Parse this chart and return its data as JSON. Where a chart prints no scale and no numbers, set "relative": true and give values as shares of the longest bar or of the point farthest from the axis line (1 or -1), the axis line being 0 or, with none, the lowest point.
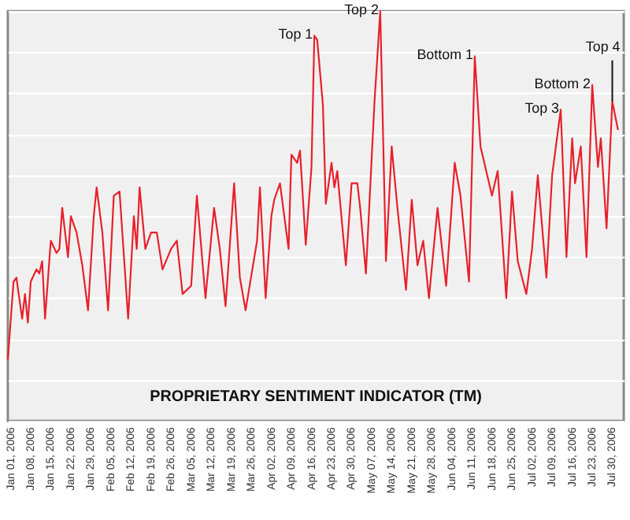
{
  "chart_data": {
    "type": "line",
    "title": "PROPRIETARY SENTIMENT INDICATOR (TM)",
    "relative": true,
    "grid": "y",
    "marker": "none",
    "line_style": "solid",
    "xlim": [
      "2005-12-31",
      "2006-08-03"
    ],
    "xticks": [
      {
        "value": "2006-01-01",
        "label": "Jan 01, 2006"
      },
      {
        "value": "2006-01-08",
        "label": "Jan 08, 2006"
      },
      {
        "value": "2006-01-15",
        "label": "Jan 15, 2006"
      },
      {
        "value": "2006-01-22",
        "label": "Jan 22, 2006"
      },
      {
        "value": "2006-01-29",
        "label": "Jan 29, 2006"
      },
      {
        "value": "2006-02-05",
        "label": "Feb 05, 2006"
      },
      {
        "value": "2006-02-12",
        "label": "Feb 12, 2006"
      },
      {
        "value": "2006-02-19",
        "label": "Feb 19, 2006"
      },
      {
        "value": "2006-02-26",
        "label": "Feb 26, 2006"
      },
      {
        "value": "2006-03-05",
        "label": "Mar 05, 2006"
      },
      {
        "value": "2006-03-12",
        "label": "Mar 12, 2006"
      },
      {
        "value": "2006-03-19",
        "label": "Mar 19, 2006"
      },
      {
        "value": "2006-03-26",
        "label": "Mar 26, 2006"
      },
      {
        "value": "2006-04-02",
        "label": "Apr 02, 2006"
      },
      {
        "value": "2006-04-09",
        "label": "Apr 09, 2006"
      },
      {
        "value": "2006-04-16",
        "label": "Apr 16, 2006"
      },
      {
        "value": "2006-04-23",
        "label": "Apr 23, 2006"
      },
      {
        "value": "2006-04-30",
        "label": "Apr 30, 2006"
      },
      {
        "value": "2006-05-07",
        "label": "May 07, 2006"
      },
      {
        "value": "2006-05-14",
        "label": "May 14, 2006"
      },
      {
        "value": "2006-05-21",
        "label": "May 21, 2006"
      },
      {
        "value": "2006-05-28",
        "label": "May 28, 2006"
      },
      {
        "value": "2006-06-04",
        "label": "Jun 04, 2006"
      },
      {
        "value": "2006-06-11",
        "label": "Jun 11, 2006"
      },
      {
        "value": "2006-06-18",
        "label": "Jun 18, 2006"
      },
      {
        "value": "2006-06-25",
        "label": "Jun 25, 2006"
      },
      {
        "value": "2006-07-02",
        "label": "Jul 02, 2006"
      },
      {
        "value": "2006-07-09",
        "label": "Jul 09, 2006"
      },
      {
        "value": "2006-07-16",
        "label": "Jul 16, 2006"
      },
      {
        "value": "2006-07-23",
        "label": "Jul 23, 2006"
      },
      {
        "value": "2006-07-30",
        "label": "Jul 30, 2006"
      }
    ],
    "x": [
      "2005-12-31",
      "2006-01-02",
      "2006-01-03",
      "2006-01-05",
      "2006-01-06",
      "2006-01-07",
      "2006-01-08",
      "2006-01-10",
      "2006-01-11",
      "2006-01-12",
      "2006-01-13",
      "2006-01-15",
      "2006-01-17",
      "2006-01-18",
      "2006-01-19",
      "2006-01-21",
      "2006-01-22",
      "2006-01-24",
      "2006-01-26",
      "2006-01-28",
      "2006-01-30",
      "2006-01-31",
      "2006-02-02",
      "2006-02-04",
      "2006-02-06",
      "2006-02-08",
      "2006-02-11",
      "2006-02-13",
      "2006-02-14",
      "2006-02-15",
      "2006-02-17",
      "2006-02-19",
      "2006-02-21",
      "2006-02-23",
      "2006-02-26",
      "2006-02-28",
      "2006-03-02",
      "2006-03-05",
      "2006-03-07",
      "2006-03-10",
      "2006-03-13",
      "2006-03-15",
      "2006-03-17",
      "2006-03-20",
      "2006-03-22",
      "2006-03-24",
      "2006-03-28",
      "2006-03-29",
      "2006-03-31",
      "2006-04-02",
      "2006-04-03",
      "2006-04-05",
      "2006-04-08",
      "2006-04-09",
      "2006-04-11",
      "2006-04-12",
      "2006-04-14",
      "2006-04-16",
      "2006-04-17",
      "2006-04-18",
      "2006-04-20",
      "2006-04-21",
      "2006-04-23",
      "2006-04-24",
      "2006-04-25",
      "2006-04-28",
      "2006-04-30",
      "2006-05-02",
      "2006-05-03",
      "2006-05-05",
      "2006-05-08",
      "2006-05-10",
      "2006-05-12",
      "2006-05-14",
      "2006-05-16",
      "2006-05-19",
      "2006-05-21",
      "2006-05-23",
      "2006-05-25",
      "2006-05-27",
      "2006-05-30",
      "2006-06-02",
      "2006-06-05",
      "2006-06-07",
      "2006-06-10",
      "2006-06-12",
      "2006-06-14",
      "2006-06-18",
      "2006-06-20",
      "2006-06-23",
      "2006-06-25",
      "2006-06-27",
      "2006-06-30",
      "2006-07-02",
      "2006-07-04",
      "2006-07-07",
      "2006-07-09",
      "2006-07-12",
      "2006-07-14",
      "2006-07-16",
      "2006-07-17",
      "2006-07-19",
      "2006-07-21",
      "2006-07-23",
      "2006-07-25",
      "2006-07-26",
      "2006-07-28",
      "2006-07-30",
      "2006-08-01"
    ],
    "series": [
      {
        "color": "#e8202a",
        "values": [
          0.15,
          0.34,
          0.35,
          0.25,
          0.31,
          0.24,
          0.34,
          0.37,
          0.36,
          0.39,
          0.25,
          0.44,
          0.41,
          0.42,
          0.52,
          0.4,
          0.5,
          0.46,
          0.38,
          0.27,
          0.5,
          0.57,
          0.46,
          0.27,
          0.55,
          0.56,
          0.25,
          0.5,
          0.42,
          0.57,
          0.42,
          0.46,
          0.46,
          0.37,
          0.42,
          0.44,
          0.31,
          0.33,
          0.55,
          0.3,
          0.52,
          0.42,
          0.28,
          0.58,
          0.35,
          0.27,
          0.44,
          0.57,
          0.3,
          0.5,
          0.54,
          0.58,
          0.42,
          0.65,
          0.63,
          0.66,
          0.43,
          0.62,
          0.94,
          0.93,
          0.77,
          0.53,
          0.63,
          0.57,
          0.61,
          0.38,
          0.58,
          0.58,
          0.52,
          0.36,
          0.78,
          1,
          0.39,
          0.67,
          0.52,
          0.32,
          0.54,
          0.38,
          0.44,
          0.3,
          0.52,
          0.33,
          0.63,
          0.55,
          0.34,
          0.89,
          0.67,
          0.55,
          0.61,
          0.3,
          0.56,
          0.39,
          0.31,
          0.42,
          0.6,
          0.35,
          0.6,
          0.76,
          0.4,
          0.69,
          0.58,
          0.67,
          0.4,
          0.82,
          0.62,
          0.69,
          0.47,
          0.78,
          0.71
        ]
      }
    ],
    "annotations": [
      {
        "text": "Top 1",
        "x": "2006-04-17",
        "y": 0.94
      },
      {
        "text": "Top 2",
        "x": "2006-05-10",
        "y": 1
      },
      {
        "text": "Bottom 1",
        "x": "2006-06-12",
        "y": 0.89
      },
      {
        "text": "Top 3",
        "x": "2006-07-12",
        "y": 0.76
      },
      {
        "text": "Bottom 2",
        "x": "2006-07-23",
        "y": 0.82
      },
      {
        "text": "Top 4",
        "x": "2006-07-30",
        "y": 0.78
      }
    ]
  }
}
